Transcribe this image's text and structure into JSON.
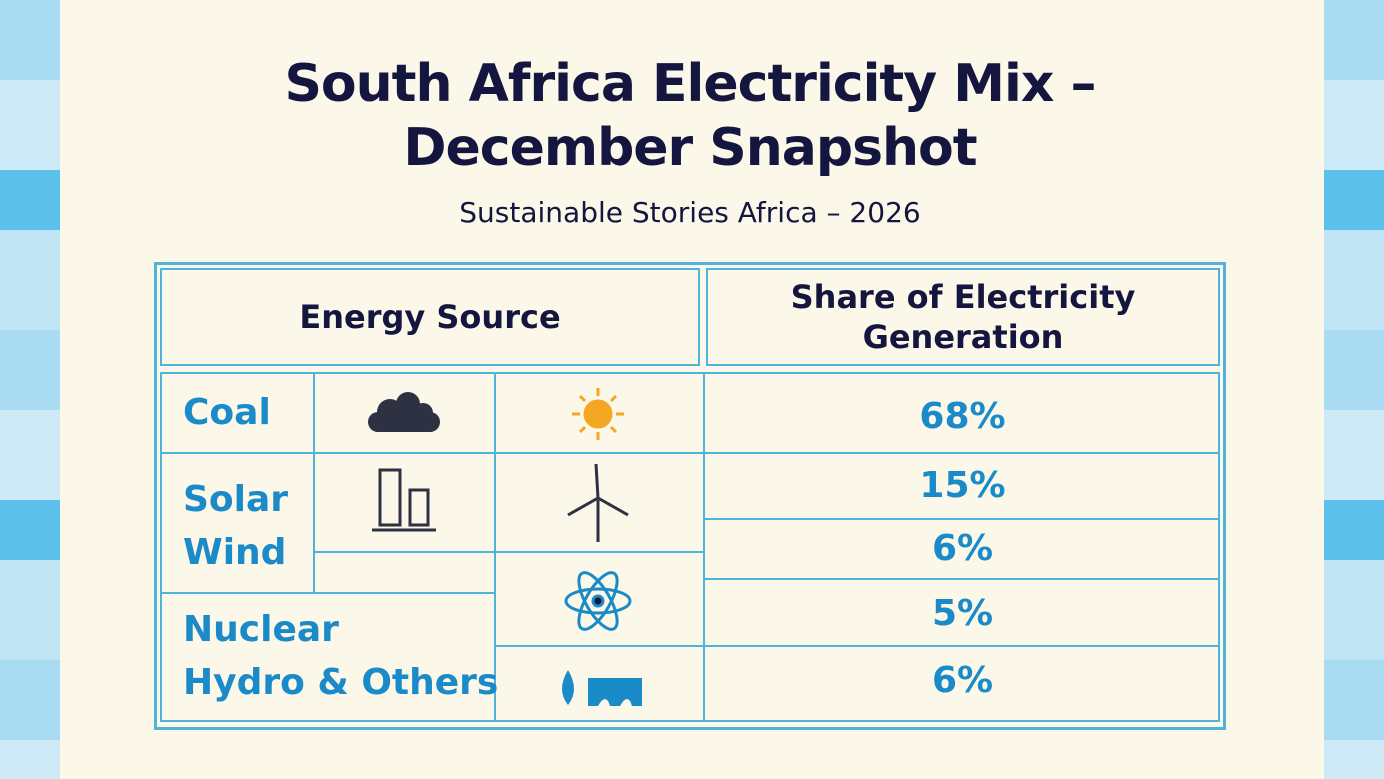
{
  "header": {
    "title": "South Africa Electricity Mix – December Snapshot",
    "subtitle": "Sustainable Stories Africa – 2026"
  },
  "table": {
    "headers": [
      "Energy Source",
      "Share of Electricity Generation"
    ],
    "rows": [
      [
        "Coal",
        "68%"
      ],
      [
        "Solar",
        "15%"
      ],
      [
        "Wind",
        "6%"
      ],
      [
        "Nuclear",
        "5%"
      ],
      [
        "Hydro & Others",
        "6%"
      ]
    ]
  }
}
